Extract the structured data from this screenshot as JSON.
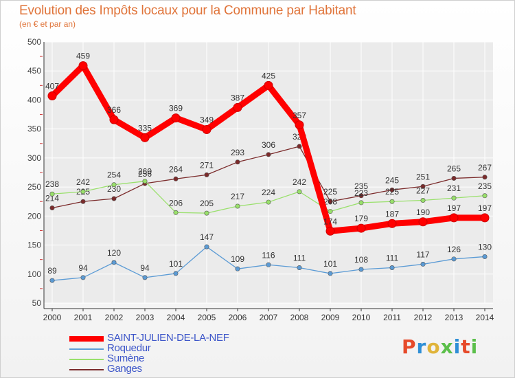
{
  "title": "Evolution des Impôts locaux pour la Commune par Habitant",
  "subtitle": "(en € et par an)",
  "logo_text": "Proxiti",
  "chart_data": {
    "type": "line",
    "title": "Evolution des Impôts locaux pour la Commune par Habitant",
    "subtitle": "(en € et par an)",
    "xlabel": "",
    "ylabel": "",
    "x": [
      "2000",
      "2001",
      "2002",
      "2003",
      "2004",
      "2005",
      "2006",
      "2007",
      "2008",
      "2009",
      "2010",
      "2011",
      "2012",
      "2013",
      "2014"
    ],
    "ylim": [
      50,
      500
    ],
    "yticks": [
      "50",
      "100",
      "150",
      "200",
      "250",
      "300",
      "350",
      "400",
      "450",
      "500"
    ],
    "grid": true,
    "legend_position": "bottom-left",
    "series": [
      {
        "name": "SAINT-JULIEN-DE-LA-NEF",
        "color": "#ff0000",
        "values": [
          407,
          459,
          366,
          335,
          369,
          349,
          387,
          425,
          357,
          174,
          179,
          187,
          190,
          197,
          197
        ]
      },
      {
        "name": "Roquedur",
        "color": "#5b9bd5",
        "values": [
          89,
          94,
          120,
          94,
          101,
          147,
          109,
          116,
          111,
          101,
          108,
          111,
          117,
          126,
          130
        ]
      },
      {
        "name": "Sumène",
        "color": "#99e06b",
        "values": [
          238,
          242,
          254,
          260,
          206,
          205,
          217,
          224,
          242,
          208,
          223,
          225,
          227,
          231,
          235
        ]
      },
      {
        "name": "Ganges",
        "color": "#7b2b2b",
        "values": [
          214,
          225,
          230,
          256,
          264,
          271,
          293,
          306,
          320,
          225,
          235,
          245,
          251,
          265,
          267
        ]
      }
    ]
  }
}
